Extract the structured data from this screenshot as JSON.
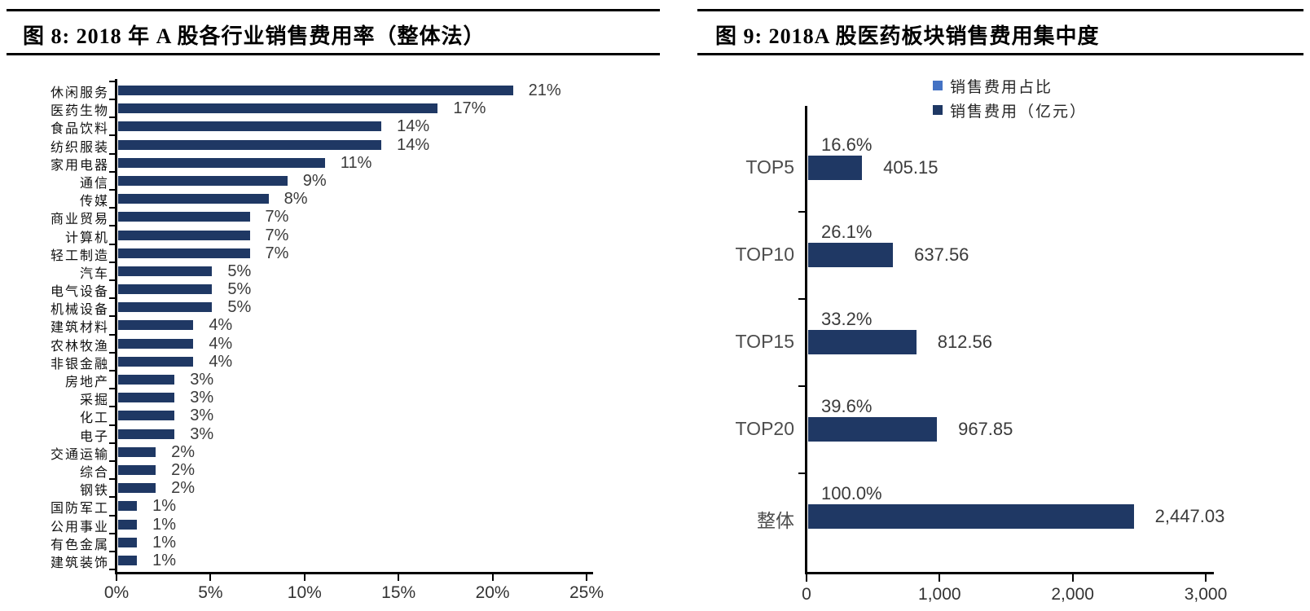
{
  "figure8": {
    "title": "图 8:  2018 年 A 股各行业销售费用率（整体法）"
  },
  "figure9": {
    "title": "图 9:  2018A 股医药板块销售费用集中度"
  },
  "chart_data": [
    {
      "type": "bar",
      "orientation": "horizontal",
      "title": "图 8: 2018 年 A 股各行业销售费用率（整体法）",
      "categories": [
        "休闲服务",
        "医药生物",
        "食品饮料",
        "纺织服装",
        "家用电器",
        "通信",
        "传媒",
        "商业贸易",
        "计算机",
        "轻工制造",
        "汽车",
        "电气设备",
        "机械设备",
        "建筑材料",
        "农林牧渔",
        "非银金融",
        "房地产",
        "采掘",
        "化工",
        "电子",
        "交通运输",
        "综合",
        "钢铁",
        "国防军工",
        "公用事业",
        "有色金属",
        "建筑装饰"
      ],
      "values": [
        21,
        17,
        14,
        14,
        11,
        9,
        8,
        7,
        7,
        7,
        5,
        5,
        5,
        4,
        4,
        4,
        3,
        3,
        3,
        3,
        2,
        2,
        2,
        1,
        1,
        1,
        1
      ],
      "labels": [
        "21%",
        "17%",
        "14%",
        "14%",
        "11%",
        "9%",
        "8%",
        "7%",
        "7%",
        "7%",
        "5%",
        "5%",
        "5%",
        "4%",
        "4%",
        "4%",
        "3%",
        "3%",
        "3%",
        "3%",
        "2%",
        "2%",
        "2%",
        "1%",
        "1%",
        "1%",
        "1%"
      ],
      "xlim": [
        0,
        25
      ],
      "x_ticks": [
        0,
        5,
        10,
        15,
        20,
        25
      ],
      "x_tick_labels": [
        "0%",
        "5%",
        "10%",
        "15%",
        "20%",
        "25%"
      ],
      "bar_color": "#1f3864",
      "grid": false,
      "legend_position": "none"
    },
    {
      "type": "bar",
      "orientation": "horizontal",
      "title": "图 9: 2018A 股医药板块销售费用集中度",
      "categories": [
        "TOP5",
        "TOP10",
        "TOP15",
        "TOP20",
        "整体"
      ],
      "series": [
        {
          "name": "销售费用占比",
          "color": "#4472c4",
          "labels": [
            "16.6%",
            "26.1%",
            "33.2%",
            "39.6%",
            "100.0%"
          ],
          "values_pct": [
            16.6,
            26.1,
            33.2,
            39.6,
            100.0
          ]
        },
        {
          "name": "销售费用（亿元）",
          "color": "#1f3864",
          "values": [
            405.15,
            637.56,
            812.56,
            967.85,
            2447.03
          ],
          "labels": [
            "405.15",
            "637.56",
            "812.56",
            "967.85",
            "2,447.03"
          ]
        }
      ],
      "xlim": [
        0,
        3000
      ],
      "x_ticks": [
        0,
        1000,
        2000,
        3000
      ],
      "x_tick_labels": [
        "0",
        "1,000",
        "2,000",
        "3,000"
      ],
      "grid": false,
      "legend_position": "top"
    }
  ]
}
